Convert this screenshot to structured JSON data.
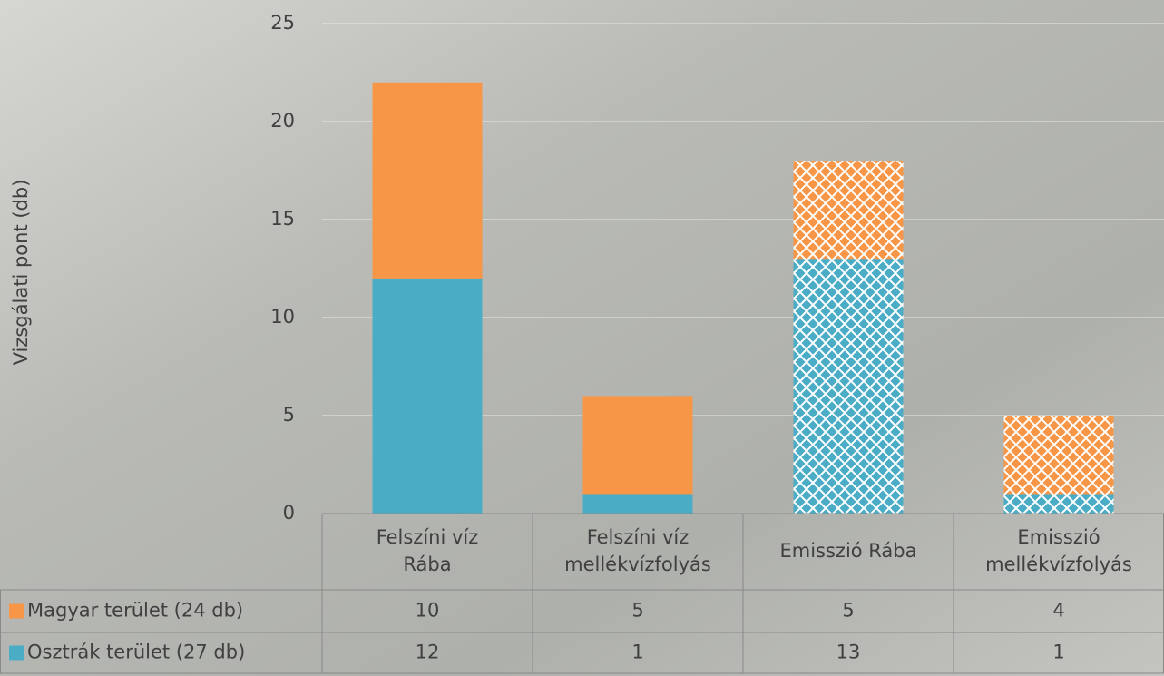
{
  "chart_data": {
    "type": "stacked_bar",
    "y_axis_label": "Vizsgálati pont (db)",
    "categories": [
      "Felszíni víz\nRába",
      "Felszíni víz\nmellékvízfolyás",
      "Emisszió Rába",
      "Emisszió\nmellékvízfolyás"
    ],
    "hatched": [
      false,
      false,
      true,
      true
    ],
    "series": [
      {
        "name": "Magyar terület (24 db)",
        "color": "#f79646",
        "values": [
          10,
          5,
          5,
          4
        ]
      },
      {
        "name": "Osztrák terület (27 db)",
        "color": "#4bacc6",
        "values": [
          12,
          1,
          13,
          1
        ]
      }
    ],
    "ylim": [
      0,
      25
    ],
    "yticks": [
      0,
      5,
      10,
      15,
      20,
      25
    ],
    "grid": true
  }
}
